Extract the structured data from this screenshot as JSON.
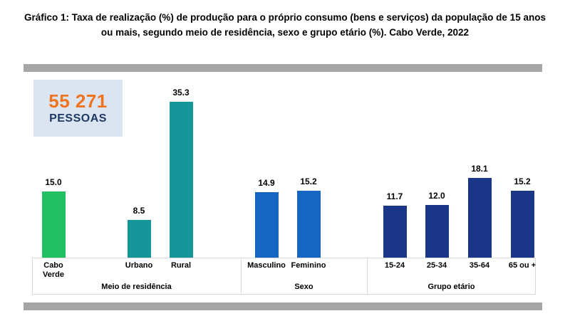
{
  "title": "Gráfico 1: Taxa de realização (%) de produção para o próprio consumo (bens e serviços) da população de 15 anos ou mais, segundo meio de residência, sexo e grupo etário (%). Cabo Verde, 2022",
  "callout": {
    "value": "55 271",
    "label": "PESSOAS",
    "bg_color": "#dbe5f1",
    "value_color": "#f07320",
    "label_color": "#1f3864"
  },
  "colors": {
    "divider_bar": "#a6a6a6",
    "axis_border": "#d9d9d9",
    "green": "#22c063",
    "teal": "#17969a",
    "blue": "#1566c2",
    "navy": "#1c3687"
  },
  "chart_data": {
    "type": "bar",
    "title": "Taxa de realização (%) de produção para o próprio consumo (bens e serviços), população 15+, Cabo Verde 2022",
    "ylabel": "Taxa de realização (%)",
    "ylim": [
      0,
      40
    ],
    "grid": false,
    "legend": "none",
    "groups": [
      {
        "label": "Meio de residência",
        "bars": [
          {
            "category": "Cabo Verde",
            "value": 15.0,
            "value_label": "15.0",
            "color": "#22c063"
          },
          {
            "category": "Urbano",
            "value": 8.5,
            "value_label": "8.5",
            "color": "#17969a"
          },
          {
            "category": "Rural",
            "value": 35.3,
            "value_label": "35.3",
            "color": "#17969a"
          }
        ]
      },
      {
        "label": "Sexo",
        "bars": [
          {
            "category": "Masculino",
            "value": 14.9,
            "value_label": "14.9",
            "color": "#1566c2"
          },
          {
            "category": "Feminino",
            "value": 15.2,
            "value_label": "15.2",
            "color": "#1566c2"
          }
        ]
      },
      {
        "label": "Grupo etário",
        "bars": [
          {
            "category": "15-24",
            "value": 11.7,
            "value_label": "11.7",
            "color": "#1c3687"
          },
          {
            "category": "25-34",
            "value": 12.0,
            "value_label": "12.0",
            "color": "#1c3687"
          },
          {
            "category": "35-64",
            "value": 18.1,
            "value_label": "18.1",
            "color": "#1c3687"
          },
          {
            "category": "65 ou +",
            "value": 15.2,
            "value_label": "15.2",
            "color": "#1c3687"
          }
        ]
      }
    ]
  }
}
